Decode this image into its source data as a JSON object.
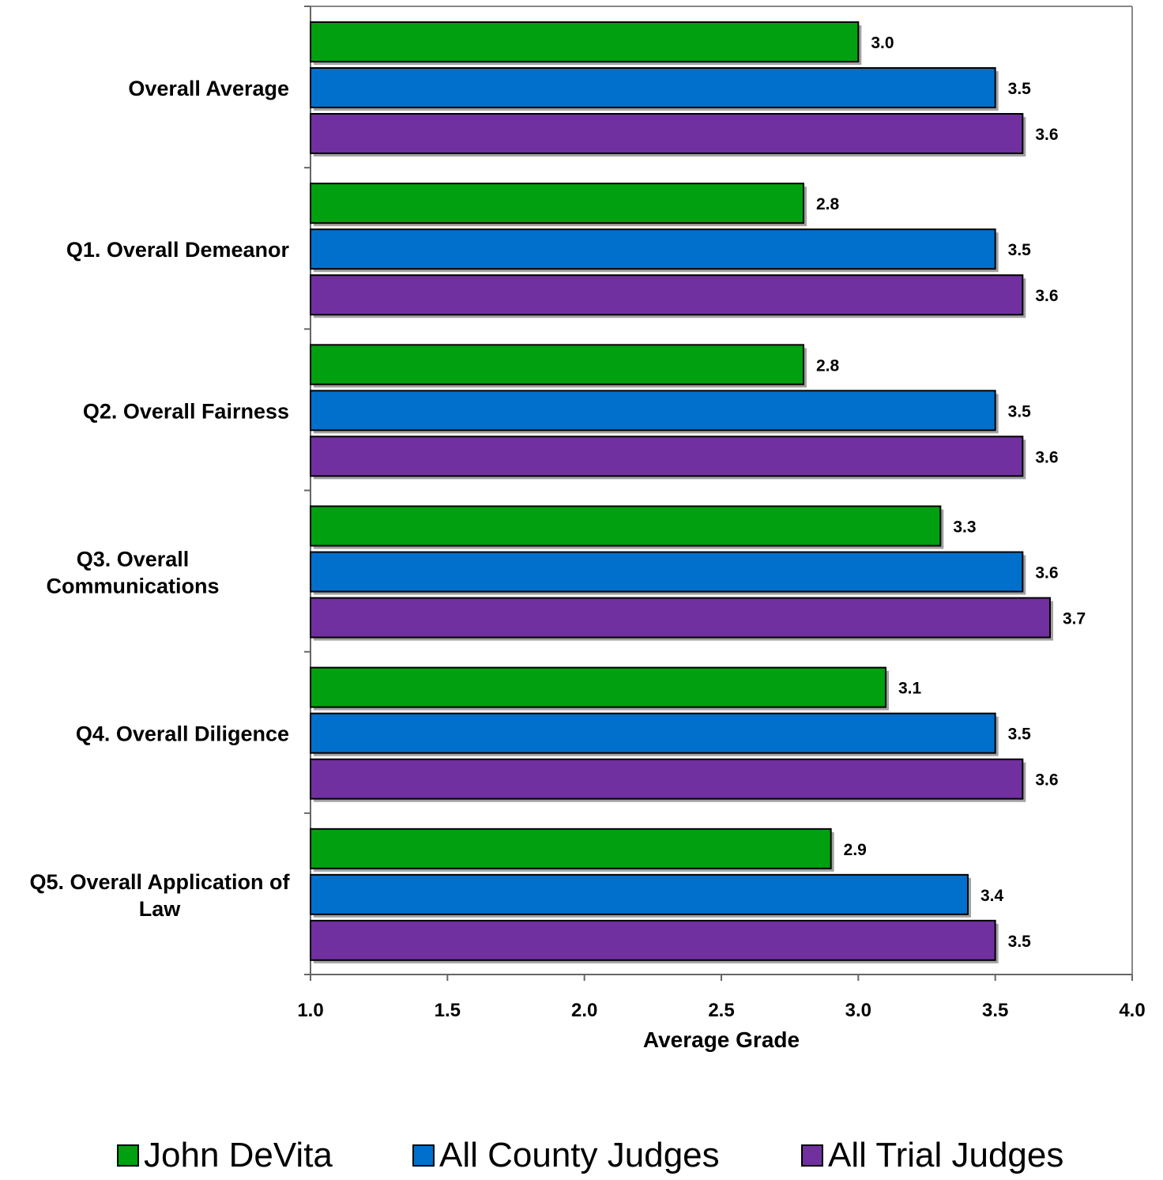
{
  "chart_data": {
    "type": "bar",
    "orientation": "horizontal",
    "categories": [
      [
        "Overall Average"
      ],
      [
        "Q1. Overall Demeanor"
      ],
      [
        "Q2. Overall Fairness"
      ],
      [
        "Q3. Overall",
        "Communications"
      ],
      [
        "Q4. Overall Diligence"
      ],
      [
        "Q5. Overall Application of",
        "Law"
      ]
    ],
    "series": [
      {
        "name": "John DeVita",
        "color": "#00a010",
        "values": [
          3.0,
          2.8,
          2.8,
          3.3,
          3.1,
          2.9
        ],
        "labels": [
          "3.0",
          "2.8",
          "2.8",
          "3.3",
          "3.1",
          "2.9"
        ]
      },
      {
        "name": "All County Judges",
        "color": "#0070cc",
        "values": [
          3.5,
          3.5,
          3.5,
          3.6,
          3.5,
          3.4
        ],
        "labels": [
          "3.5",
          "3.5",
          "3.5",
          "3.6",
          "3.5",
          "3.4"
        ]
      },
      {
        "name": "All Trial Judges",
        "color": "#7030a0",
        "values": [
          3.6,
          3.6,
          3.6,
          3.7,
          3.6,
          3.5
        ],
        "labels": [
          "3.6",
          "3.6",
          "3.6",
          "3.7",
          "3.6",
          "3.5"
        ]
      }
    ],
    "xlabel": "Average Grade",
    "xlim": [
      1.0,
      4.0
    ],
    "xticks": [
      "1.0",
      "1.5",
      "2.0",
      "2.5",
      "3.0",
      "3.5",
      "4.0"
    ],
    "grid": false,
    "legend_position": "bottom"
  }
}
